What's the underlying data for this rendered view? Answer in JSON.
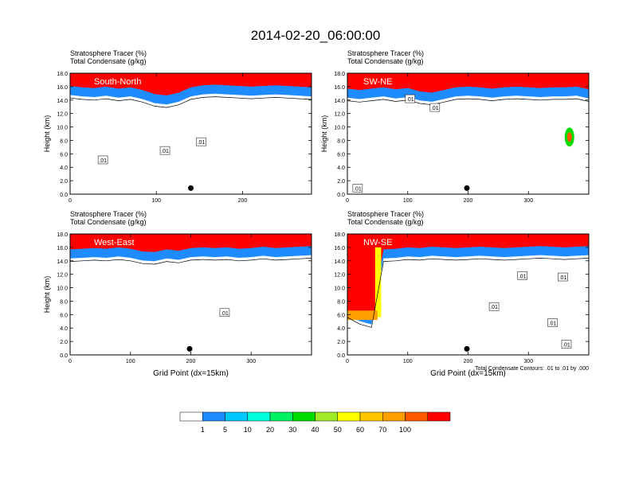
{
  "page_title": "2014-02-20_06:00:00",
  "colors": {
    "strat_fill": [
      "#ffffff",
      "#1e8cff",
      "#00c8ff",
      "#00ffdc",
      "#00f064",
      "#00dc00",
      "#a0eb28",
      "#ffff00",
      "#ffc800",
      "#ffa000",
      "#ff5a00",
      "#ff0000"
    ],
    "frame": "#000000",
    "contour": "#000000"
  },
  "colorbar": {
    "labels": [
      "1",
      "5",
      "10",
      "20",
      "30",
      "40",
      "50",
      "60",
      "70",
      "100"
    ]
  },
  "chart_data": [
    {
      "type": "heatmap",
      "name": "South-North",
      "title_line1": "Stratosphere Tracer   (%)",
      "title_line2": "Total Condensate   (g/kg)",
      "panel_label": "South-North",
      "ylabel": "Height (km)",
      "xlabel": "",
      "xlim": [
        0,
        280
      ],
      "ylim": [
        0,
        18
      ],
      "xticks": [
        "0",
        "100",
        "200"
      ],
      "xtick_values": [
        0,
        100,
        200
      ],
      "yticks": [
        "0.0",
        "2.0",
        "4.0",
        "6.0",
        "8.0",
        "10.0",
        "12.0",
        "14.0",
        "16.0",
        "18.0"
      ],
      "tropopause_km": [
        15.2,
        15.0,
        14.9,
        15.1,
        14.8,
        15.0,
        14.6,
        14.0,
        13.8,
        14.2,
        15.0,
        15.3,
        15.4,
        15.3,
        15.2,
        15.1,
        15.2,
        15.3,
        15.2,
        15.1,
        15.0
      ],
      "contour_labels": [
        {
          "text": ".01",
          "x": 38,
          "y": 5.1
        },
        {
          "text": ".01",
          "x": 110,
          "y": 6.5
        },
        {
          "text": ".01",
          "x": 152,
          "y": 7.8
        }
      ],
      "marker": {
        "x": 140,
        "y": 0.9
      }
    },
    {
      "type": "heatmap",
      "name": "SW-NE",
      "title_line1": "Stratosphere Tracer   (%)",
      "title_line2": "Total Condensate   (g/kg)",
      "panel_label": "SW-NE",
      "ylabel": "Height (km)",
      "xlabel": "",
      "xlim": [
        0,
        400
      ],
      "ylim": [
        0,
        18
      ],
      "xticks": [
        "0",
        "100",
        "200",
        "300"
      ],
      "xtick_values": [
        0,
        100,
        200,
        300
      ],
      "yticks": [
        "0.0",
        "2.0",
        "4.0",
        "6.0",
        "8.0",
        "10.0",
        "12.0",
        "14.0",
        "16.0",
        "18.0"
      ],
      "tropopause_km": [
        14.8,
        14.6,
        14.8,
        15.0,
        14.7,
        14.9,
        14.4,
        14.2,
        14.6,
        15.0,
        15.1,
        15.0,
        14.8,
        15.0,
        15.1,
        15.0,
        14.9,
        15.0,
        15.0,
        15.1,
        14.7
      ],
      "contour_labels": [
        {
          "text": ".01",
          "x": 104,
          "y": 14.2
        },
        {
          "text": ".01",
          "x": 145,
          "y": 12.9
        },
        {
          "text": ".01",
          "x": 17,
          "y": 0.9
        }
      ],
      "marker": {
        "x": 198,
        "y": 0.9
      }
    },
    {
      "type": "heatmap",
      "name": "West-East",
      "title_line1": "Stratosphere Tracer   (%)",
      "title_line2": "Total Condensate   (g/kg)",
      "panel_label": "West-East",
      "ylabel": "Height (km)",
      "xlabel": "Grid Point (dx=15km)",
      "xlim": [
        0,
        400
      ],
      "ylim": [
        0,
        18
      ],
      "xticks": [
        "0",
        "100",
        "200",
        "300"
      ],
      "xtick_values": [
        0,
        100,
        200,
        300
      ],
      "yticks": [
        "0.0",
        "2.0",
        "4.0",
        "6.0",
        "8.0",
        "10.0",
        "12.0",
        "14.0",
        "16.0",
        "18.0"
      ],
      "tropopause_km": [
        14.8,
        14.9,
        15.0,
        14.9,
        15.1,
        14.9,
        14.5,
        14.4,
        14.8,
        14.6,
        15.0,
        15.1,
        15.0,
        15.1,
        14.9,
        15.0,
        15.2,
        15.0,
        15.1,
        15.2,
        15.3
      ],
      "contour_labels": [
        {
          "text": ".01",
          "x": 256,
          "y": 6.3
        }
      ],
      "marker": {
        "x": 198,
        "y": 0.9
      }
    },
    {
      "type": "heatmap",
      "name": "NW-SE",
      "title_line1": "Stratosphere Tracer   (%)",
      "title_line2": "Total Condensate   (g/kg)",
      "panel_label": "NW-SE",
      "ylabel": "",
      "xlabel": "Grid Point (dx=15km)",
      "xlim": [
        0,
        400
      ],
      "ylim": [
        0,
        18
      ],
      "xticks": [
        "0",
        "100",
        "200",
        "300"
      ],
      "xtick_values": [
        0,
        100,
        200,
        300
      ],
      "yticks": [
        "0.0",
        "2.0",
        "4.0",
        "6.0",
        "8.0",
        "10.0",
        "12.0",
        "14.0",
        "16.0",
        "18.0"
      ],
      "tropopause_km": [
        6.5,
        5.5,
        5.0,
        14.8,
        14.9,
        15.1,
        15.0,
        15.2,
        15.1,
        15.0,
        15.1,
        15.2,
        15.1,
        15.0,
        15.1,
        15.2,
        15.3,
        15.2,
        15.1,
        15.2,
        15.3
      ],
      "contour_labels": [
        {
          "text": ".01",
          "x": 290,
          "y": 11.8
        },
        {
          "text": ".01",
          "x": 243,
          "y": 7.2
        },
        {
          "text": ".01",
          "x": 340,
          "y": 4.8
        },
        {
          "text": ".01",
          "x": 363,
          "y": 1.6
        },
        {
          "text": ".01",
          "x": 357,
          "y": 11.6
        }
      ],
      "marker": {
        "x": 198,
        "y": 0.9
      },
      "note": "Total Condensate Contours: .01 to .01 by .000"
    }
  ]
}
